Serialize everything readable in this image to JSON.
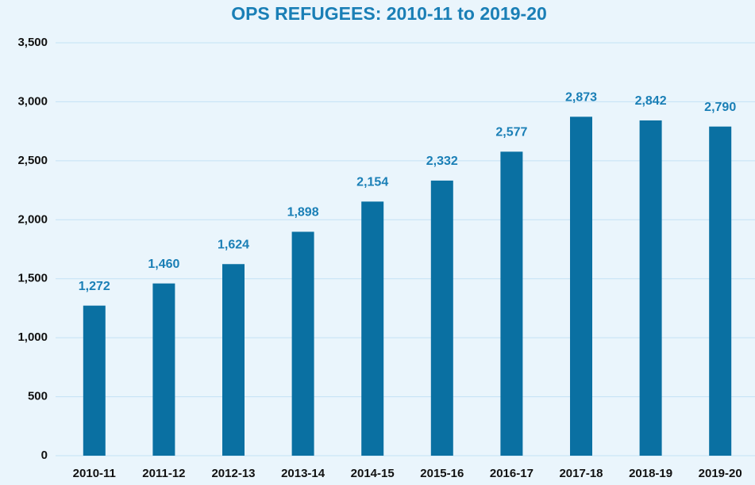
{
  "chart_data": {
    "type": "bar",
    "title": "OPS REFUGEES:  2010-11 to 2019-20",
    "categories": [
      "2010-11",
      "2011-12",
      "2012-13",
      "2013-14",
      "2014-15",
      "2015-16",
      "2016-17",
      "2017-18",
      "2018-19",
      "2019-20"
    ],
    "values": [
      1272,
      1460,
      1624,
      1898,
      2154,
      2332,
      2577,
      2873,
      2842,
      2790
    ],
    "value_labels": [
      "1,272",
      "1,460",
      "1,624",
      "1,898",
      "2,154",
      "2,332",
      "2,577",
      "2,873",
      "2,842",
      "2,790"
    ],
    "color": "#0a70a2",
    "ylim": [
      0,
      3500
    ],
    "yticks": [
      0,
      500,
      {
        "value": 1000,
        "label": "1,000"
      },
      {
        "value": 1500,
        "label": "1,500"
      },
      {
        "value": 2000,
        "label": "2,000"
      },
      {
        "value": 2500,
        "label": "2,500"
      },
      {
        "value": 3000,
        "label": "3,000"
      },
      {
        "value": 3500,
        "label": "3,500"
      }
    ],
    "grid": true
  }
}
